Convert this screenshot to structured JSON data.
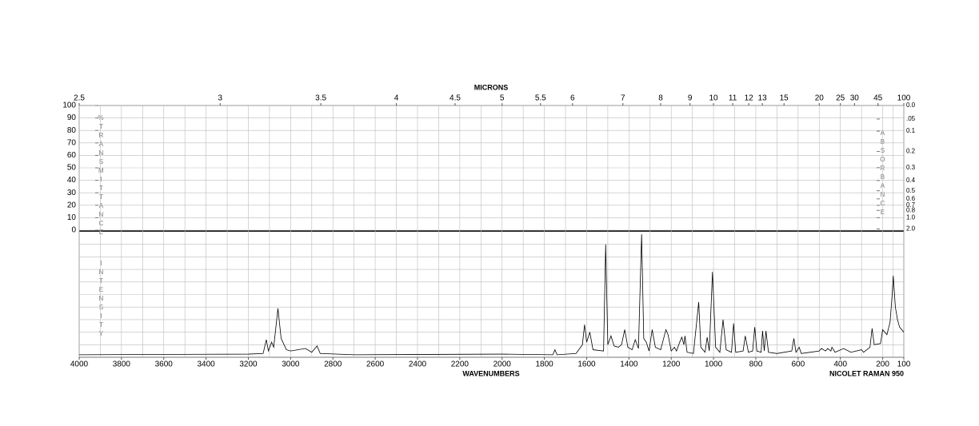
{
  "chart_data": {
    "type": "line",
    "top_axis_label": "MICRONS",
    "x_label": "WAVENUMBERS",
    "instrument": "NICOLET RAMAN 950",
    "y_label_symbol": "%",
    "y_label": "TRANSMITTANCE",
    "y2_label": "ABSORBANCE",
    "lower_label": "INTENSITY",
    "color": "#000000",
    "grid": true,
    "xlim": [
      4000,
      100
    ],
    "xticks": [
      4000,
      3800,
      3600,
      3400,
      3200,
      3000,
      2800,
      2600,
      2400,
      2200,
      2000,
      1800,
      1600,
      1400,
      1200,
      1000,
      800,
      600,
      400,
      200,
      100
    ],
    "micron_ticks": [
      2.5,
      3,
      3.5,
      4,
      4.5,
      5,
      5.5,
      6,
      7,
      8,
      9,
      10,
      11,
      12,
      13,
      15,
      20,
      25,
      30,
      45,
      100
    ],
    "ylim": [
      0,
      100
    ],
    "yticks": [
      0,
      10,
      20,
      30,
      40,
      50,
      60,
      70,
      80,
      90,
      100
    ],
    "y2ticks": [
      {
        "value": 0,
        "label": "0.0"
      },
      {
        "value": 0.05,
        "label": ".05"
      },
      0.1,
      0.2,
      0.3,
      0.4,
      0.5,
      0.6,
      0.7,
      0.8,
      {
        "value": 1,
        "label": "1.0"
      },
      {
        "value": 2,
        "label": "2.0"
      }
    ],
    "intensity_lim": [
      0,
      100
    ],
    "x": [
      4000,
      3200,
      3130,
      3115,
      3105,
      3090,
      3080,
      3060,
      3045,
      3020,
      3000,
      2930,
      2900,
      2875,
      2860,
      2700,
      2000,
      1760,
      1750,
      1740,
      1650,
      1620,
      1610,
      1600,
      1585,
      1570,
      1520,
      1510,
      1500,
      1485,
      1470,
      1450,
      1435,
      1420,
      1405,
      1385,
      1370,
      1355,
      1340,
      1330,
      1318,
      1305,
      1290,
      1275,
      1250,
      1225,
      1215,
      1200,
      1185,
      1175,
      1160,
      1150,
      1140,
      1135,
      1125,
      1095,
      1070,
      1060,
      1040,
      1030,
      1020,
      1005,
      990,
      970,
      955,
      940,
      915,
      905,
      895,
      860,
      850,
      835,
      815,
      805,
      795,
      775,
      768,
      760,
      752,
      740,
      700,
      630,
      620,
      610,
      595,
      585,
      500,
      490,
      470,
      460,
      445,
      440,
      425,
      385,
      350,
      300,
      290,
      260,
      250,
      240,
      210,
      200,
      180,
      165,
      155,
      150,
      140,
      130,
      120,
      100
    ],
    "values": [
      2,
      2.5,
      3,
      14,
      5,
      12,
      8,
      39,
      15,
      6,
      5,
      7,
      4,
      9,
      3,
      2,
      2.5,
      2,
      6,
      2,
      3,
      10,
      26,
      12,
      20,
      6,
      5,
      90,
      10,
      17,
      9,
      8,
      10,
      22,
      8,
      6,
      14,
      7,
      98,
      15,
      12,
      5,
      22,
      8,
      6,
      22,
      18,
      5,
      8,
      5,
      12,
      16,
      10,
      17,
      4,
      3,
      44,
      8,
      4,
      16,
      5,
      68,
      8,
      4,
      30,
      6,
      4,
      27,
      4,
      5,
      17,
      4,
      5,
      24,
      5,
      4,
      21,
      5,
      21,
      4,
      3,
      5,
      15,
      4,
      8,
      3,
      5,
      7,
      5,
      7,
      5,
      8,
      4,
      7,
      4,
      6,
      4,
      8,
      23,
      10,
      11,
      22,
      18,
      28,
      50,
      65,
      40,
      30,
      24,
      20
    ]
  }
}
